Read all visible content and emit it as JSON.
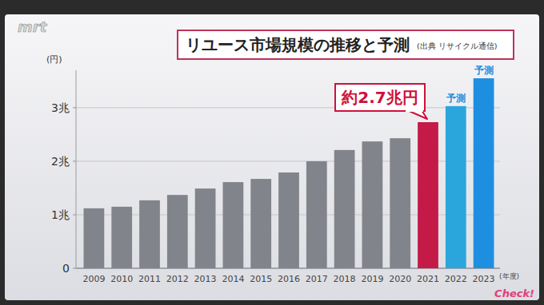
{
  "chart_data": {
    "type": "bar",
    "title": "リユース市場規模の推移と予測",
    "source": "(出典 リサイクル通信)",
    "logos": [
      "mrt",
      "Check!"
    ],
    "y_label": "(円)",
    "x_label": "(年度)",
    "categories": [
      "2009",
      "2010",
      "2011",
      "2012",
      "2013",
      "2014",
      "2015",
      "2016",
      "2017",
      "2018",
      "2019",
      "2020",
      "2021",
      "2022",
      "2023"
    ],
    "values": [
      1.12,
      1.15,
      1.27,
      1.37,
      1.49,
      1.61,
      1.67,
      1.79,
      2.0,
      2.21,
      2.37,
      2.43,
      2.73,
      3.03,
      3.55
    ],
    "colors": [
      "#82848b",
      "#82848b",
      "#82848b",
      "#82848b",
      "#82848b",
      "#82848b",
      "#82848b",
      "#82848b",
      "#82848b",
      "#82848b",
      "#82848b",
      "#82848b",
      "#c41a48",
      "#2aa6dc",
      "#1e8fe0"
    ],
    "ylim": [
      0,
      3.7
    ],
    "yticks": [
      0,
      {
        "value": 1,
        "label": "1兆"
      },
      {
        "value": 2,
        "label": "2兆"
      },
      {
        "value": 3,
        "label": "3兆"
      }
    ],
    "grid": true,
    "annotations": [
      {
        "text": "約2.7兆円",
        "category": "2021",
        "type": "callout",
        "color": "#d0103a"
      },
      {
        "text": "予測",
        "category": "2022",
        "type": "text",
        "color": "#1a8ce0"
      },
      {
        "text": "予測",
        "category": "2023",
        "type": "text",
        "color": "#1a8ce0"
      }
    ]
  }
}
